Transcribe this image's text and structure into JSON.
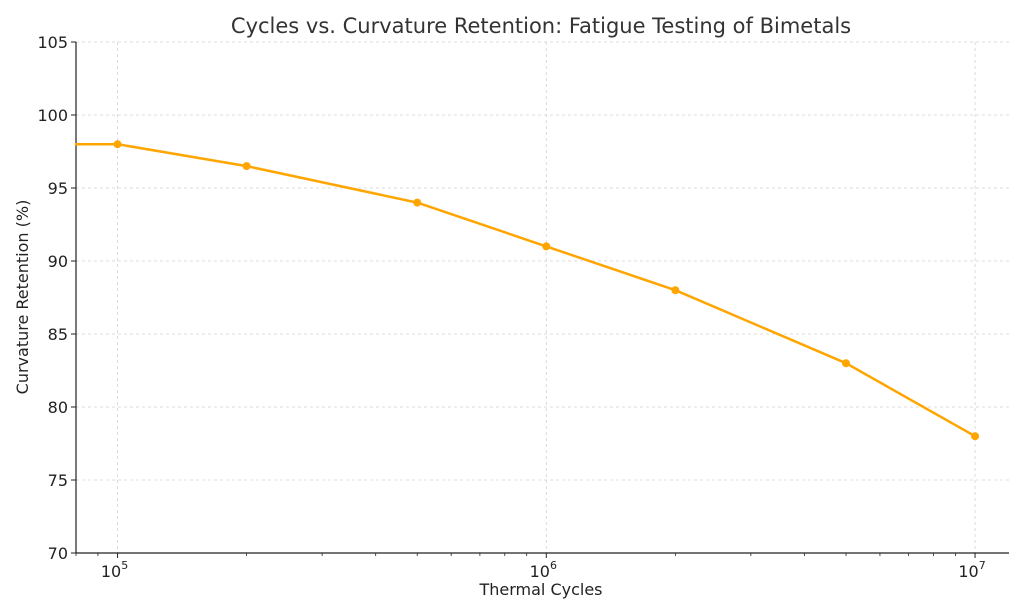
{
  "chart_data": {
    "type": "line",
    "title": "Cycles vs. Curvature Retention: Fatigue Testing of Bimetals",
    "xlabel": "Thermal Cycles",
    "ylabel": "Curvature Retention (%)",
    "x_scale": "log",
    "xlim": [
      80000,
      12000000
    ],
    "ylim": [
      70,
      105
    ],
    "grid": true,
    "x_ticks": [
      {
        "value": 100000,
        "base": "10",
        "exponent": "5"
      },
      {
        "value": 1000000,
        "base": "10",
        "exponent": "6"
      },
      {
        "value": 10000000,
        "base": "10",
        "exponent": "7"
      }
    ],
    "y_ticks": [
      70,
      75,
      80,
      85,
      90,
      95,
      100,
      105
    ],
    "series": [
      {
        "color": "#FFA500",
        "x": [
          100000,
          200000,
          500000,
          1000000,
          2000000,
          5000000,
          10000000
        ],
        "y": [
          98,
          96.5,
          94,
          91,
          88,
          83,
          78
        ]
      }
    ]
  }
}
